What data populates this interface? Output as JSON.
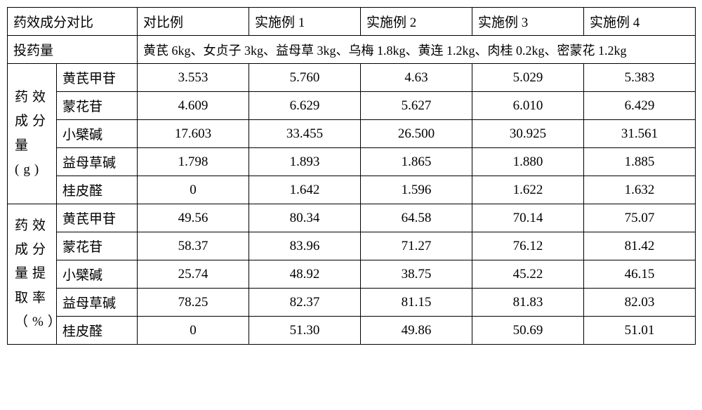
{
  "header": {
    "c1": "药效成分对比",
    "c2": "对比例",
    "c3": "实施例 1",
    "c4": "实施例 2",
    "c5": "实施例 3",
    "c6": "实施例 4"
  },
  "dosage": {
    "label": "投药量",
    "value": "黄芪 6kg、女贞子 3kg、益母草 3kg、乌梅 1.8kg、黄连 1.2kg、肉桂 0.2kg、密蒙花 1.2kg"
  },
  "group1": {
    "label": "药效成分量(g)",
    "rows": [
      {
        "name": "黄芪甲苷",
        "v1": "3.553",
        "v2": "5.760",
        "v3": "4.63",
        "v4": "5.029",
        "v5": "5.383"
      },
      {
        "name": "蒙花苷",
        "v1": "4.609",
        "v2": "6.629",
        "v3": "5.627",
        "v4": "6.010",
        "v5": "6.429"
      },
      {
        "name": "小檗碱",
        "v1": "17.603",
        "v2": "33.455",
        "v3": "26.500",
        "v4": "30.925",
        "v5": "31.561"
      },
      {
        "name": "益母草碱",
        "v1": "1.798",
        "v2": "1.893",
        "v3": "1.865",
        "v4": "1.880",
        "v5": "1.885"
      },
      {
        "name": "桂皮醛",
        "v1": "0",
        "v2": "1.642",
        "v3": "1.596",
        "v4": "1.622",
        "v5": "1.632"
      }
    ]
  },
  "group2": {
    "label": "药效成分量提取率（%）",
    "rows": [
      {
        "name": "黄芪甲苷",
        "v1": "49.56",
        "v2": "80.34",
        "v3": "64.58",
        "v4": "70.14",
        "v5": "75.07"
      },
      {
        "name": "蒙花苷",
        "v1": "58.37",
        "v2": "83.96",
        "v3": "71.27",
        "v4": "76.12",
        "v5": "81.42"
      },
      {
        "name": "小檗碱",
        "v1": "25.74",
        "v2": "48.92",
        "v3": "38.75",
        "v4": "45.22",
        "v5": "46.15"
      },
      {
        "name": "益母草碱",
        "v1": "78.25",
        "v2": "82.37",
        "v3": "81.15",
        "v4": "81.83",
        "v5": "82.03"
      },
      {
        "name": "桂皮醛",
        "v1": "0",
        "v2": "51.30",
        "v3": "49.86",
        "v4": "50.69",
        "v5": "51.01"
      }
    ]
  }
}
